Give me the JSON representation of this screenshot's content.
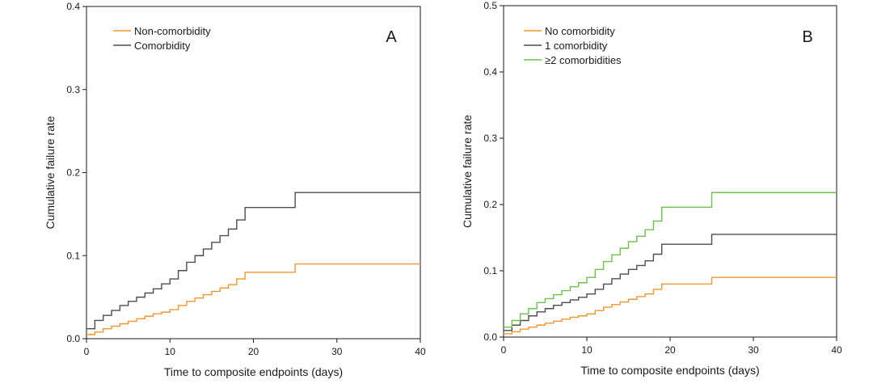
{
  "chart_data": [
    {
      "type": "line",
      "step": true,
      "panel_label": "A",
      "xlabel": "Time to composite endpoints (days)",
      "ylabel": "Cumulative failure rate",
      "xlim": [
        0,
        40
      ],
      "ylim": [
        0,
        0.4
      ],
      "xticks": [
        "0",
        "10",
        "20",
        "30",
        "40"
      ],
      "yticks": [
        "0.0",
        "0.1",
        "0.2",
        "0.3",
        "0.4"
      ],
      "grid": false,
      "legend_position": "top-left",
      "series": [
        {
          "name": "Non-comorbidity",
          "color": "#f0962f",
          "points": [
            [
              0,
              0.005
            ],
            [
              1,
              0.008
            ],
            [
              2,
              0.012
            ],
            [
              3,
              0.015
            ],
            [
              4,
              0.018
            ],
            [
              5,
              0.021
            ],
            [
              6,
              0.024
            ],
            [
              7,
              0.027
            ],
            [
              8,
              0.03
            ],
            [
              9,
              0.032
            ],
            [
              10,
              0.035
            ],
            [
              11,
              0.04
            ],
            [
              12,
              0.045
            ],
            [
              13,
              0.049
            ],
            [
              14,
              0.053
            ],
            [
              15,
              0.057
            ],
            [
              16,
              0.061
            ],
            [
              17,
              0.065
            ],
            [
              18,
              0.072
            ],
            [
              19,
              0.08
            ],
            [
              25,
              0.09
            ],
            [
              40,
              0.09
            ]
          ]
        },
        {
          "name": "Comorbidity",
          "color": "#4d4d4d",
          "points": [
            [
              0,
              0.012
            ],
            [
              1,
              0.022
            ],
            [
              2,
              0.028
            ],
            [
              3,
              0.034
            ],
            [
              4,
              0.04
            ],
            [
              5,
              0.045
            ],
            [
              6,
              0.05
            ],
            [
              7,
              0.055
            ],
            [
              8,
              0.06
            ],
            [
              9,
              0.066
            ],
            [
              10,
              0.072
            ],
            [
              11,
              0.082
            ],
            [
              12,
              0.092
            ],
            [
              13,
              0.1
            ],
            [
              14,
              0.108
            ],
            [
              15,
              0.116
            ],
            [
              16,
              0.124
            ],
            [
              17,
              0.132
            ],
            [
              18,
              0.143
            ],
            [
              19,
              0.158
            ],
            [
              25,
              0.176
            ],
            [
              40,
              0.176
            ]
          ]
        }
      ]
    },
    {
      "type": "line",
      "step": true,
      "panel_label": "B",
      "xlabel": "Time to composite endpoints (days)",
      "ylabel": "Cumulative failure rate",
      "xlim": [
        0,
        40
      ],
      "ylim": [
        0,
        0.5
      ],
      "xticks": [
        "0",
        "10",
        "20",
        "30",
        "40"
      ],
      "yticks": [
        "0.0",
        "0.1",
        "0.2",
        "0.3",
        "0.4",
        "0.5"
      ],
      "grid": false,
      "legend_position": "top-left",
      "series": [
        {
          "name": "No comorbidity",
          "color": "#f0962f",
          "points": [
            [
              0,
              0.005
            ],
            [
              1,
              0.008
            ],
            [
              2,
              0.012
            ],
            [
              3,
              0.015
            ],
            [
              4,
              0.018
            ],
            [
              5,
              0.021
            ],
            [
              6,
              0.024
            ],
            [
              7,
              0.027
            ],
            [
              8,
              0.03
            ],
            [
              9,
              0.032
            ],
            [
              10,
              0.035
            ],
            [
              11,
              0.04
            ],
            [
              12,
              0.045
            ],
            [
              13,
              0.049
            ],
            [
              14,
              0.053
            ],
            [
              15,
              0.057
            ],
            [
              16,
              0.061
            ],
            [
              17,
              0.065
            ],
            [
              18,
              0.072
            ],
            [
              19,
              0.08
            ],
            [
              25,
              0.09
            ],
            [
              40,
              0.09
            ]
          ]
        },
        {
          "name": "1 comorbidity",
          "color": "#4d4d4d",
          "points": [
            [
              0,
              0.01
            ],
            [
              1,
              0.018
            ],
            [
              2,
              0.025
            ],
            [
              3,
              0.032
            ],
            [
              4,
              0.038
            ],
            [
              5,
              0.043
            ],
            [
              6,
              0.048
            ],
            [
              7,
              0.052
            ],
            [
              8,
              0.056
            ],
            [
              9,
              0.06
            ],
            [
              10,
              0.065
            ],
            [
              11,
              0.072
            ],
            [
              12,
              0.08
            ],
            [
              13,
              0.088
            ],
            [
              14,
              0.095
            ],
            [
              15,
              0.102
            ],
            [
              16,
              0.108
            ],
            [
              17,
              0.115
            ],
            [
              18,
              0.125
            ],
            [
              19,
              0.14
            ],
            [
              25,
              0.155
            ],
            [
              40,
              0.155
            ]
          ]
        },
        {
          "name": "≥2 comorbidities",
          "color": "#6cc24a",
          "points": [
            [
              0,
              0.015
            ],
            [
              1,
              0.025
            ],
            [
              2,
              0.035
            ],
            [
              3,
              0.043
            ],
            [
              4,
              0.052
            ],
            [
              5,
              0.058
            ],
            [
              6,
              0.064
            ],
            [
              7,
              0.07
            ],
            [
              8,
              0.076
            ],
            [
              9,
              0.082
            ],
            [
              10,
              0.09
            ],
            [
              11,
              0.102
            ],
            [
              12,
              0.114
            ],
            [
              13,
              0.124
            ],
            [
              14,
              0.134
            ],
            [
              15,
              0.144
            ],
            [
              16,
              0.152
            ],
            [
              17,
              0.162
            ],
            [
              18,
              0.175
            ],
            [
              19,
              0.196
            ],
            [
              25,
              0.218
            ],
            [
              40,
              0.218
            ]
          ]
        }
      ]
    }
  ]
}
